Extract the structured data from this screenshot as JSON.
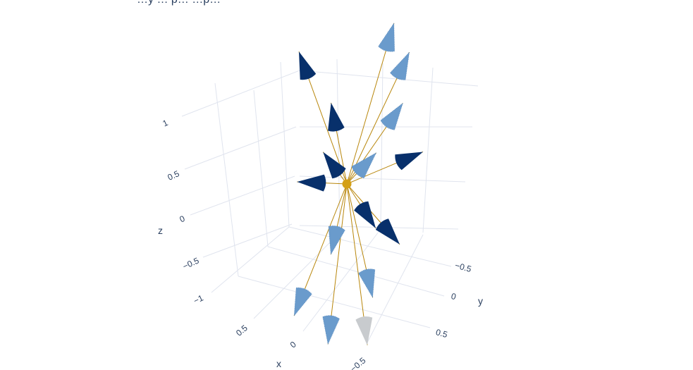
{
  "title": "…y … p… …p…",
  "colors": {
    "cone_dark": "#08306b",
    "cone_light": "#6a9bcc",
    "cone_grey": "#c8cbce",
    "ray": "#b8860b",
    "origin": "#d4a017",
    "grid": "#e0e4ee",
    "tick_text": "#2a3f5f"
  },
  "chart_data": {
    "type": "scatter3d-cones",
    "title": "…y … p… …p…",
    "axes": {
      "x": {
        "label": "x",
        "ticks": [
          "0.5",
          "0",
          "−0.5"
        ],
        "range": [
          -1,
          1
        ]
      },
      "y": {
        "label": "y",
        "ticks": [
          "−0.5",
          "0",
          "0.5"
        ],
        "range": [
          -1,
          1
        ]
      },
      "z": {
        "label": "z",
        "ticks": [
          "1",
          "0.5",
          "0",
          "−0.5",
          "−1"
        ],
        "range": [
          -1.2,
          1.2
        ]
      }
    },
    "grid": true,
    "origin": [
      0,
      0,
      0
    ],
    "series": [
      {
        "points": [
          {
            "x": -0.8,
            "y": 0.15,
            "z": 0.75,
            "shade": "light"
          },
          {
            "x": -0.45,
            "y": 0.55,
            "z": 0.85,
            "shade": "light"
          },
          {
            "x": 0.1,
            "y": 0.85,
            "z": 0.95,
            "shade": "light"
          },
          {
            "x": 0.2,
            "y": 0.55,
            "z": 0.55,
            "shade": "light"
          },
          {
            "x": -0.25,
            "y": -0.2,
            "z": 0.55,
            "shade": "dark"
          },
          {
            "x": -0.2,
            "y": -0.35,
            "z": 0.1,
            "shade": "dark"
          },
          {
            "x": -0.8,
            "y": -0.9,
            "z": 0.45,
            "shade": "dark"
          },
          {
            "x": 0.1,
            "y": 0.95,
            "z": 0.45,
            "shade": "dark"
          },
          {
            "x": 0.4,
            "y": 0.55,
            "z": 0.0,
            "shade": "dark"
          },
          {
            "x": 0.5,
            "y": 0.85,
            "z": -0.05,
            "shade": "dark"
          },
          {
            "x": -0.5,
            "y": -0.95,
            "z": -0.55,
            "shade": "dark"
          },
          {
            "x": 0.2,
            "y": -0.15,
            "z": -0.5,
            "shade": "light"
          },
          {
            "x": 0.45,
            "y": -0.45,
            "z": -0.85,
            "shade": "light"
          },
          {
            "x": 0.75,
            "y": 0.1,
            "z": -0.8,
            "shade": "light"
          },
          {
            "x": 0.5,
            "y": 0.45,
            "z": -0.6,
            "shade": "light"
          },
          {
            "x": 0.8,
            "y": 0.55,
            "z": -0.75,
            "shade": "grey"
          }
        ]
      }
    ]
  }
}
